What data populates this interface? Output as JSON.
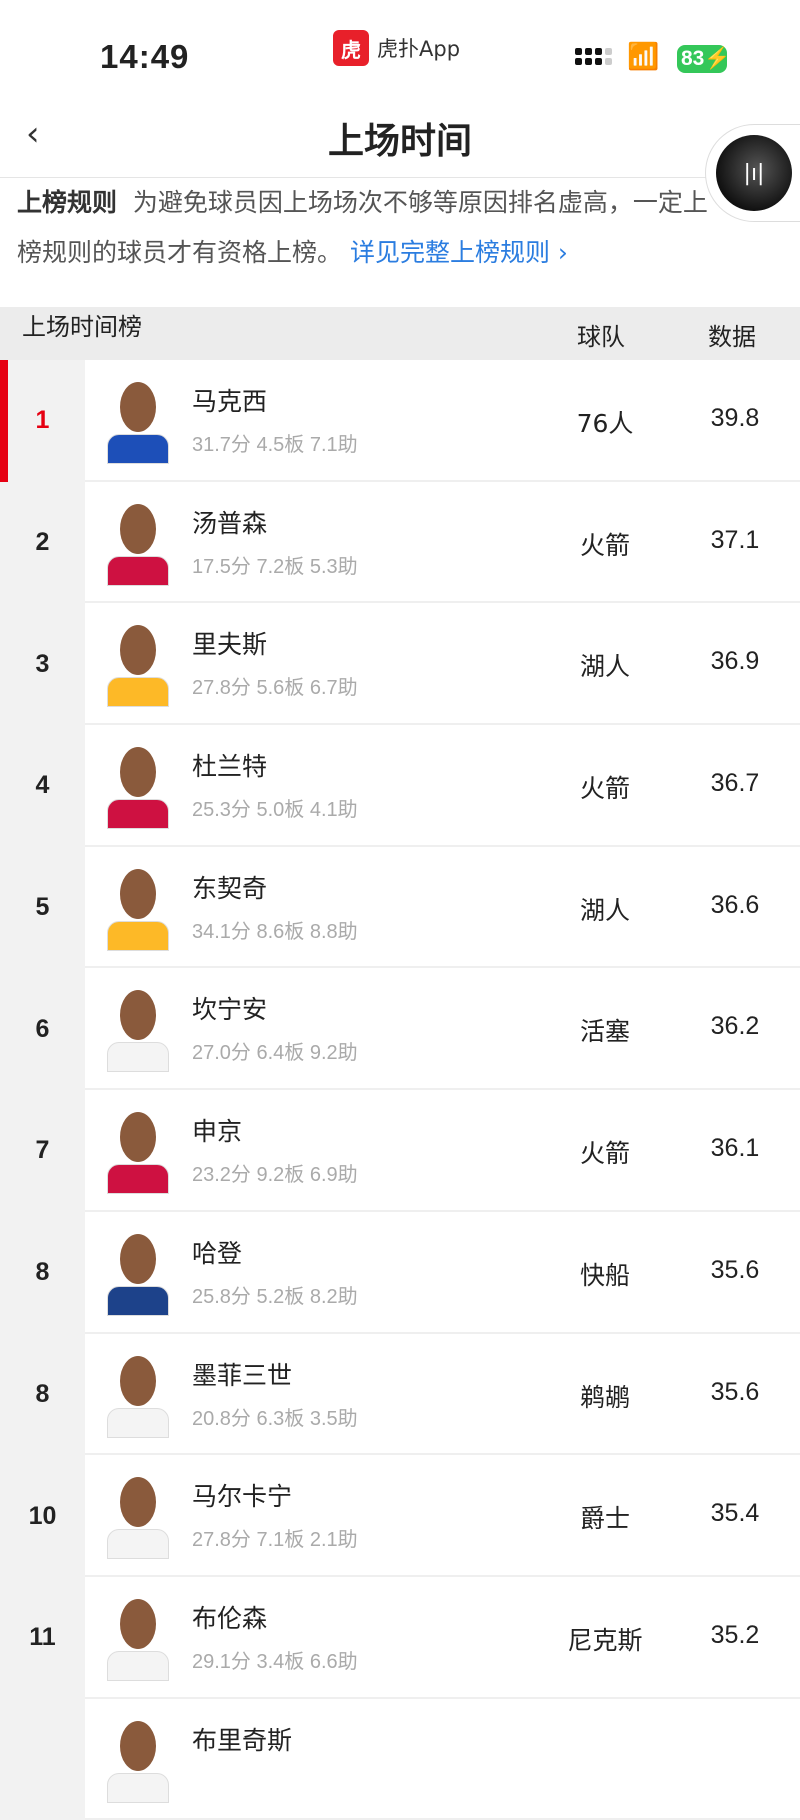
{
  "status": {
    "time": "14:49",
    "app": "虎扑App",
    "app_logo": "虎扑",
    "battery": "83"
  },
  "nav": {
    "title": "上场时间",
    "back_icon": "chevron-left-icon"
  },
  "rules": {
    "label": "上榜规则",
    "text": "为避免球员因上场场次不够等原因排名虚高，一定上榜规则的球员才有资格上榜。",
    "link": "详见完整上榜规则 ›"
  },
  "table": {
    "title": "上场时间榜",
    "col_team": "球队",
    "col_value": "数据"
  },
  "rows": [
    {
      "rank": "1",
      "name": "马克西",
      "stats": "31.7分  4.5板  7.1助",
      "team": "76人",
      "value": "39.8",
      "jersey": "#1d4fb8"
    },
    {
      "rank": "2",
      "name": "汤普森",
      "stats": "17.5分  7.2板  5.3助",
      "team": "火箭",
      "value": "37.1",
      "jersey": "#ce1141"
    },
    {
      "rank": "3",
      "name": "里夫斯",
      "stats": "27.8分  5.6板  6.7助",
      "team": "湖人",
      "value": "36.9",
      "jersey": "#fdb927"
    },
    {
      "rank": "4",
      "name": "杜兰特",
      "stats": "25.3分  5.0板  4.1助",
      "team": "火箭",
      "value": "36.7",
      "jersey": "#ce1141"
    },
    {
      "rank": "5",
      "name": "东契奇",
      "stats": "34.1分  8.6板  8.8助",
      "team": "湖人",
      "value": "36.6",
      "jersey": "#fdb927"
    },
    {
      "rank": "6",
      "name": "坎宁安",
      "stats": "27.0分  6.4板  9.2助",
      "team": "活塞",
      "value": "36.2",
      "jersey": "#f4f4f4"
    },
    {
      "rank": "7",
      "name": "申京",
      "stats": "23.2分  9.2板  6.9助",
      "team": "火箭",
      "value": "36.1",
      "jersey": "#ce1141"
    },
    {
      "rank": "8",
      "name": "哈登",
      "stats": "25.8分  5.2板  8.2助",
      "team": "快船",
      "value": "35.6",
      "jersey": "#1d428a"
    },
    {
      "rank": "8",
      "name": "墨菲三世",
      "stats": "20.8分  6.3板  3.5助",
      "team": "鹈鹕",
      "value": "35.6",
      "jersey": "#f4f4f4"
    },
    {
      "rank": "10",
      "name": "马尔卡宁",
      "stats": "27.8分  7.1板  2.1助",
      "team": "爵士",
      "value": "35.4",
      "jersey": "#f4f4f4"
    },
    {
      "rank": "11",
      "name": "布伦森",
      "stats": "29.1分  3.4板  6.6助",
      "team": "尼克斯",
      "value": "35.2",
      "jersey": "#f4f4f4"
    },
    {
      "rank": "",
      "name": "布里奇斯",
      "stats": "",
      "team": "",
      "value": "",
      "jersey": "#f4f4f4"
    }
  ]
}
